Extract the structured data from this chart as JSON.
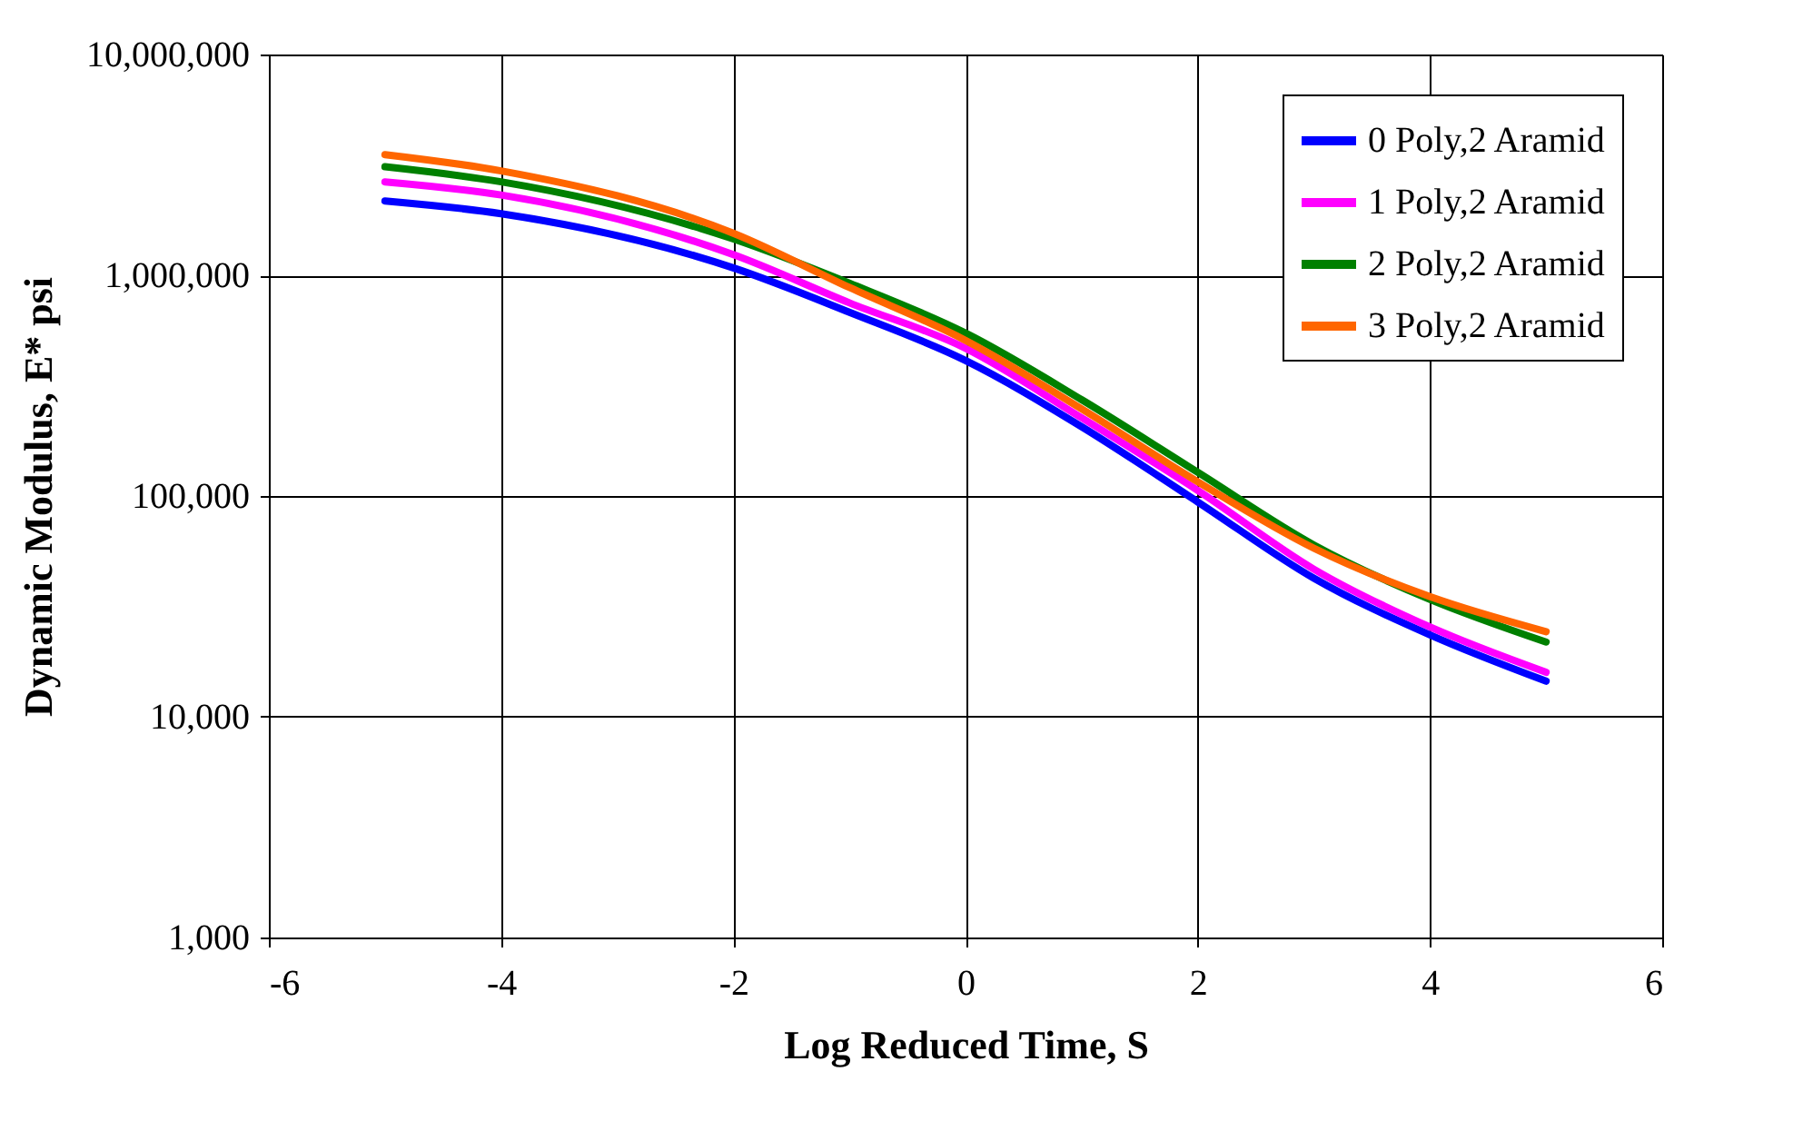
{
  "chart_data": {
    "type": "line",
    "xlabel": "Log Reduced Time, S",
    "ylabel": "Dynamic Modulus, E* psi",
    "x": [
      -5,
      -4,
      -2,
      -1,
      0,
      1,
      2,
      3,
      4,
      5
    ],
    "series": [
      {
        "name": "0 Poly,2 Aramid",
        "color": "#0000ff",
        "values": [
          2170000,
          1900000,
          1080000,
          680000,
          411000,
          206000,
          94000,
          42400,
          23500,
          14500
        ]
      },
      {
        "name": "1 Poly,2 Aramid",
        "color": "#ff00ff",
        "values": [
          2650000,
          2310000,
          1240000,
          750000,
          467000,
          226000,
          106000,
          46600,
          25500,
          15900
        ]
      },
      {
        "name": "2 Poly,2 Aramid",
        "color": "#008000",
        "values": [
          3100000,
          2650000,
          1460000,
          920000,
          547000,
          273000,
          128000,
          60000,
          34000,
          21800
        ]
      },
      {
        "name": "3 Poly,2 Aramid",
        "color": "#ff6600",
        "values": [
          3520000,
          2970000,
          1550000,
          880000,
          507000,
          248000,
          116000,
          58000,
          35000,
          24300
        ]
      }
    ],
    "xlim": [
      -6,
      6
    ],
    "xticks": [
      -6,
      -4,
      -2,
      0,
      2,
      4,
      6
    ],
    "ylim": [
      1000,
      10000000
    ],
    "yticks": [
      {
        "value": 1000,
        "label": "1,000"
      },
      {
        "value": 10000,
        "label": "10,000"
      },
      {
        "value": 100000,
        "label": "100,000"
      },
      {
        "value": 1000000,
        "label": "1,000,000"
      },
      {
        "value": 10000000,
        "label": "10,000,000"
      }
    ],
    "log": "y",
    "grid": true,
    "legend": "top right",
    "marker": "none",
    "line_style": "solid"
  }
}
